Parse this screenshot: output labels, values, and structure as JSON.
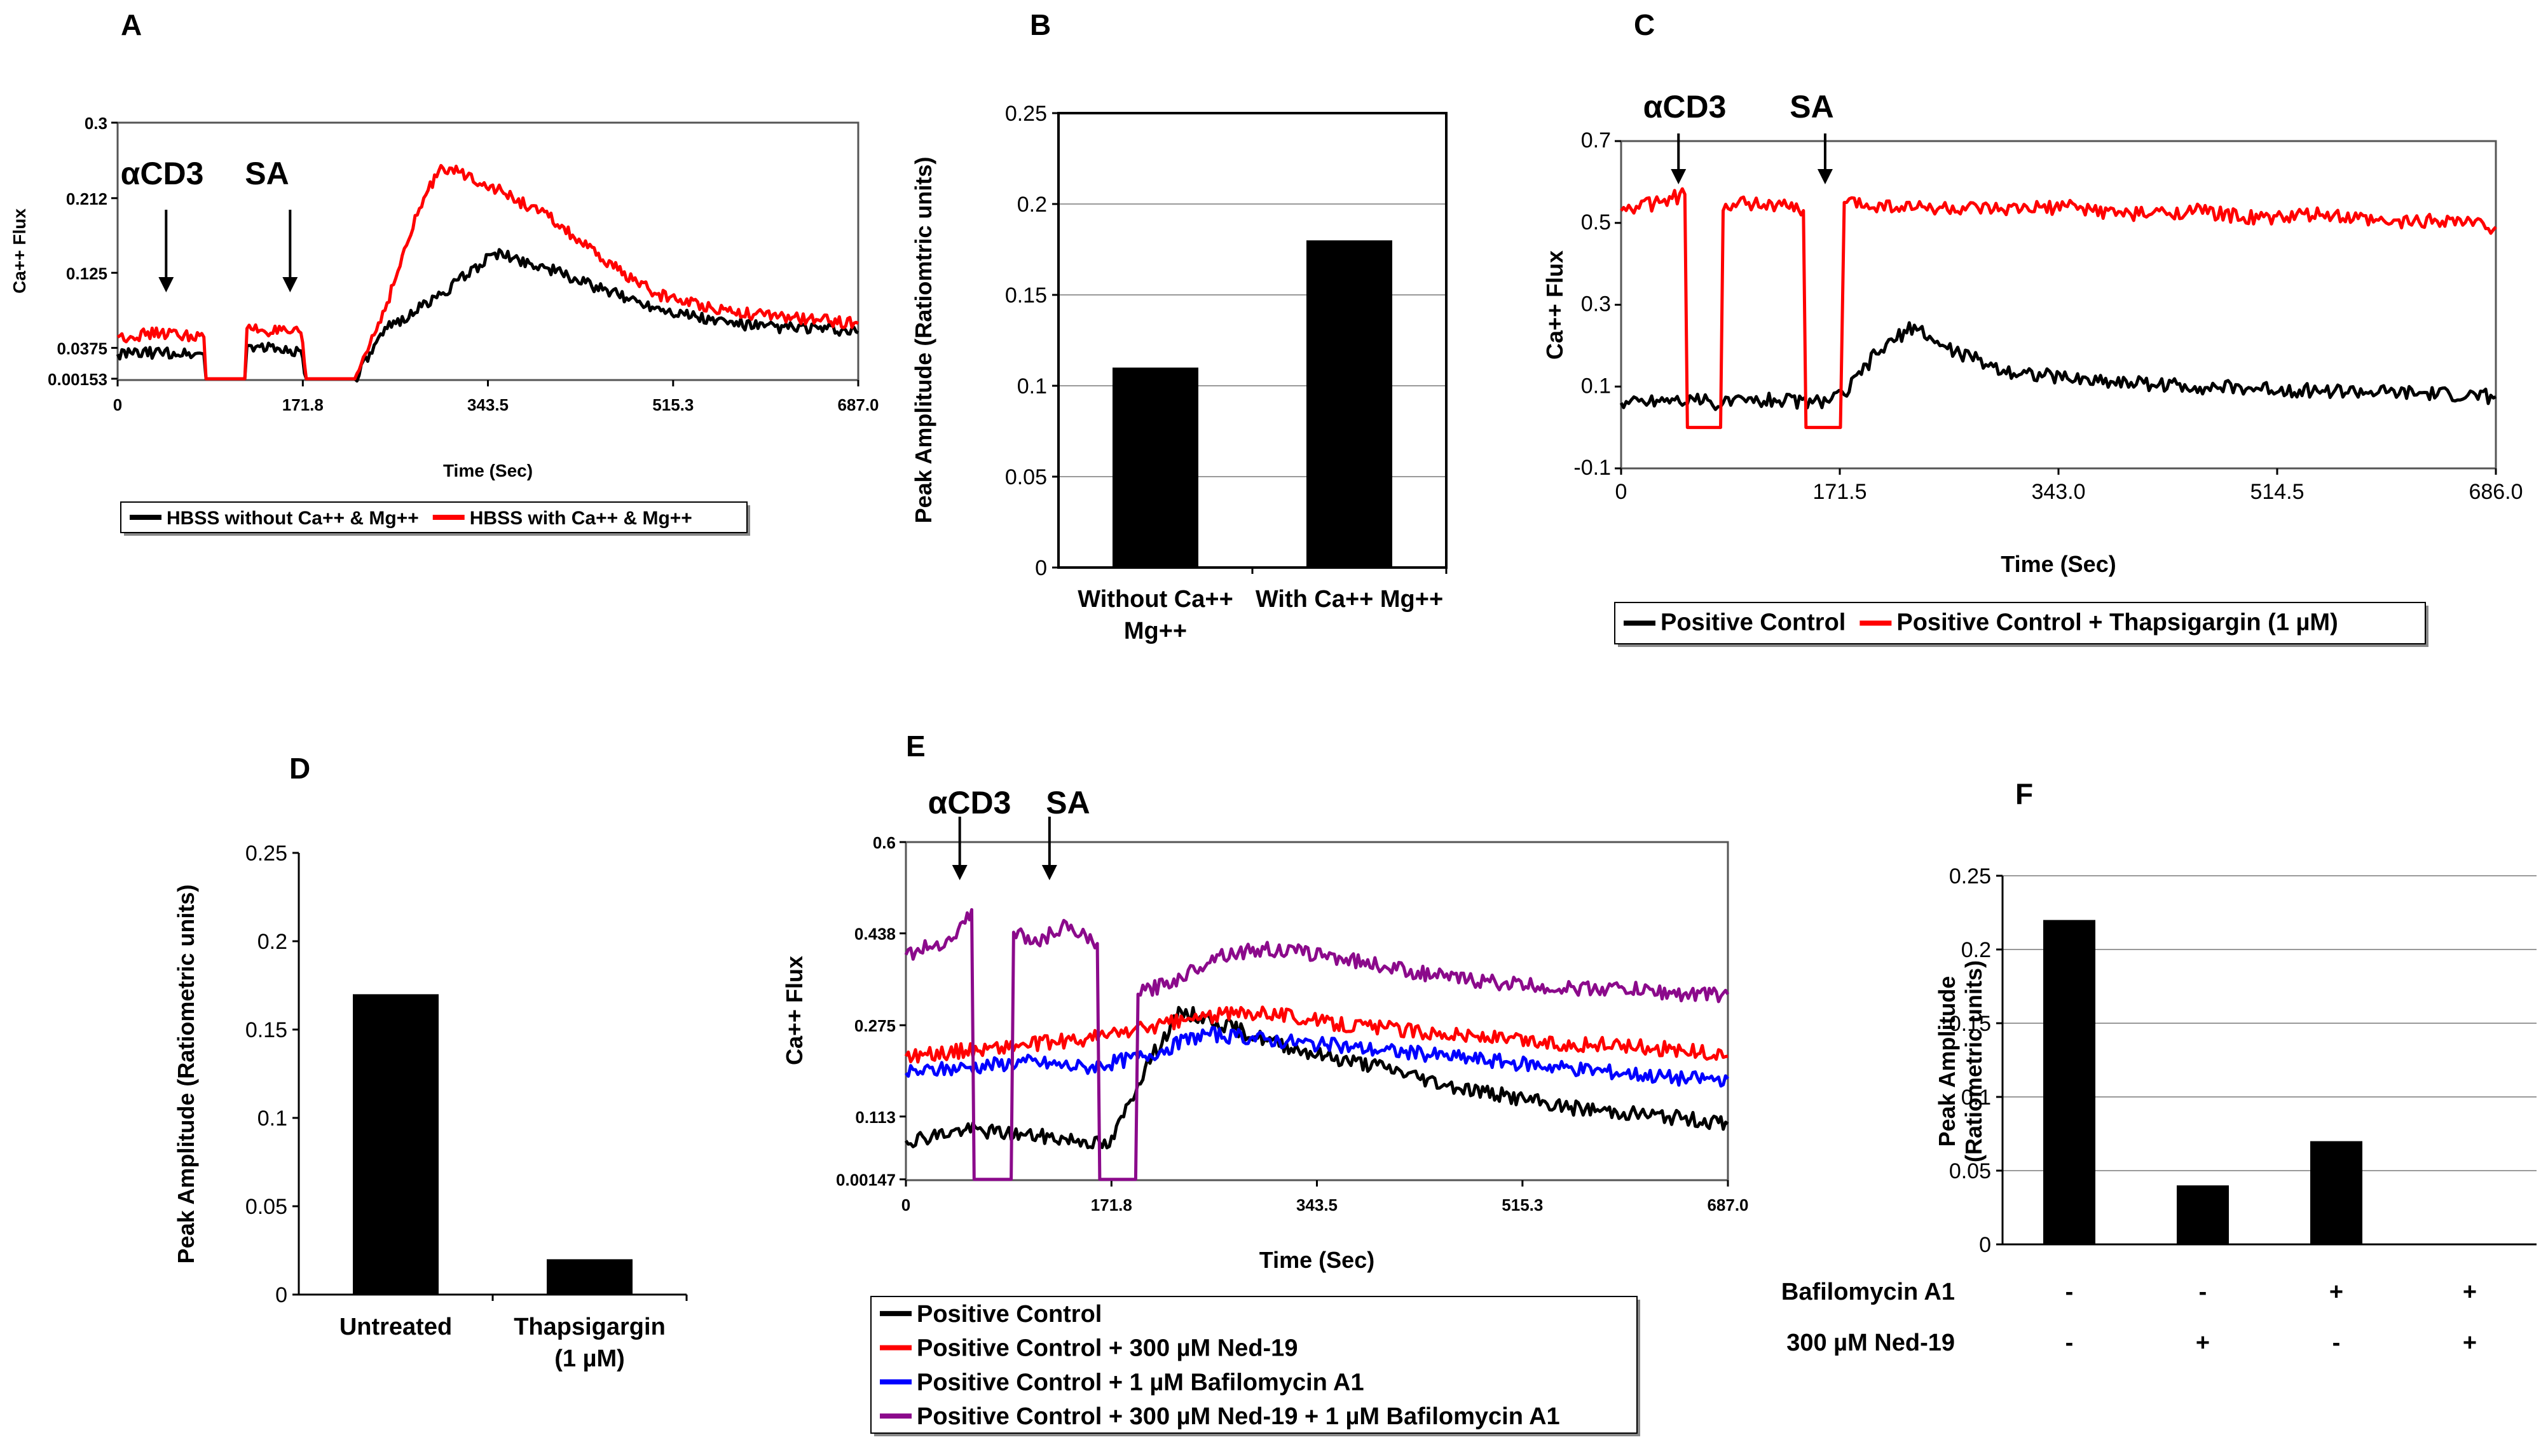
{
  "chart_data": [
    {
      "id": "A",
      "type": "line",
      "panel_label": "A",
      "xlabel": "Time (Sec)",
      "ylabel": "Ca++ Flux",
      "xlim": [
        0,
        687.0
      ],
      "ylim": [
        0,
        0.3
      ],
      "xticks": [
        "0",
        "171.8",
        "343.5",
        "515.3",
        "687.0"
      ],
      "yticks": [
        "0.00153",
        "0.0375",
        "0.125",
        "0.212",
        "0.3"
      ],
      "ytick_values": [
        0.00153,
        0.0375,
        0.125,
        0.212,
        0.3
      ],
      "annotations": [
        {
          "text": "αCD3",
          "x": 45
        },
        {
          "text": "SA",
          "x": 160
        }
      ],
      "legend_placement": "bottom",
      "series": [
        {
          "name": "HBSS without Ca++ & Mg++",
          "color": "#000000",
          "x": [
            0,
            40,
            80,
            82,
            118,
            120,
            160,
            170,
            175,
            220,
            250,
            300,
            350,
            400,
            450,
            500,
            550,
            600,
            650,
            687
          ],
          "y": [
            0.03,
            0.032,
            0.03,
            0.0015,
            0.0015,
            0.04,
            0.035,
            0.034,
            0.0015,
            0.0015,
            0.06,
            0.1,
            0.148,
            0.13,
            0.105,
            0.085,
            0.07,
            0.062,
            0.06,
            0.055
          ]
        },
        {
          "name": "HBSS with Ca++ & Mg++",
          "color": "#ff0000",
          "x": [
            0,
            40,
            80,
            82,
            118,
            120,
            160,
            170,
            175,
            220,
            250,
            280,
            300,
            340,
            400,
            450,
            500,
            550,
            600,
            650,
            687
          ],
          "y": [
            0.05,
            0.055,
            0.05,
            0.0015,
            0.0015,
            0.06,
            0.055,
            0.055,
            0.0015,
            0.0015,
            0.09,
            0.2,
            0.25,
            0.23,
            0.19,
            0.14,
            0.1,
            0.085,
            0.075,
            0.07,
            0.066
          ]
        }
      ]
    },
    {
      "id": "B",
      "type": "bar",
      "panel_label": "B",
      "ylabel": "Peak Amplitude (Ratiomtric units)",
      "ylim": [
        0,
        0.25
      ],
      "yticks": [
        "0",
        "0.05",
        "0.1",
        "0.15",
        "0.2",
        "0.25"
      ],
      "categories": [
        [
          "Without Ca++",
          "Mg++"
        ],
        [
          "With Ca++ Mg++"
        ]
      ],
      "values": [
        0.11,
        0.18
      ],
      "color": "#000000",
      "grid": true
    },
    {
      "id": "C",
      "type": "line",
      "panel_label": "C",
      "xlabel": "Time (Sec)",
      "ylabel": "Ca++ Flux",
      "xlim": [
        0,
        686.0
      ],
      "ylim": [
        -0.1,
        0.7
      ],
      "xticks": [
        "0",
        "171.5",
        "343.0",
        "514.5",
        "686.0"
      ],
      "yticks": [
        "-0.1",
        "0.1",
        "0.3",
        "0.5",
        "0.7"
      ],
      "annotations": [
        {
          "text": "αCD3",
          "x": 45
        },
        {
          "text": "SA",
          "x": 160
        }
      ],
      "legend_placement": "bottom",
      "series": [
        {
          "name": "Positive Control",
          "color": "#000000",
          "x": [
            0,
            40,
            80,
            120,
            150,
            165,
            175,
            200,
            230,
            250,
            300,
            350,
            400,
            450,
            500,
            550,
            600,
            650,
            686
          ],
          "y": [
            0.06,
            0.07,
            0.06,
            0.07,
            0.06,
            0.07,
            0.08,
            0.18,
            0.25,
            0.2,
            0.14,
            0.12,
            0.11,
            0.1,
            0.095,
            0.09,
            0.085,
            0.08,
            0.075
          ]
        },
        {
          "name": "Positive Control + Thapsigargin (1 µM)",
          "color": "#ff0000",
          "x": [
            0,
            30,
            50,
            52,
            78,
            80,
            100,
            130,
            143,
            145,
            172,
            175,
            220,
            300,
            350,
            400,
            450,
            500,
            550,
            600,
            650,
            686
          ],
          "y": [
            0.53,
            0.55,
            0.57,
            0.0,
            0.0,
            0.53,
            0.55,
            0.54,
            0.53,
            0.0,
            0.0,
            0.55,
            0.54,
            0.53,
            0.54,
            0.52,
            0.53,
            0.51,
            0.52,
            0.5,
            0.51,
            0.49
          ]
        }
      ]
    },
    {
      "id": "D",
      "type": "bar",
      "panel_label": "D",
      "ylabel": "Peak Amplitude (Ratiometric units)",
      "ylim": [
        0,
        0.25
      ],
      "yticks": [
        "0",
        "0.05",
        "0.1",
        "0.15",
        "0.2",
        "0.25"
      ],
      "categories": [
        [
          "Untreated"
        ],
        [
          "Thapsigargin",
          "(1 µM)"
        ]
      ],
      "values": [
        0.17,
        0.02
      ],
      "color": "#000000",
      "grid": false
    },
    {
      "id": "E",
      "type": "line",
      "panel_label": "E",
      "xlabel": "Time (Sec)",
      "ylabel": "Ca++ Flux",
      "xlim": [
        0,
        687.0
      ],
      "ylim": [
        0,
        0.6
      ],
      "xticks": [
        "0",
        "171.8",
        "343.5",
        "515.3",
        "687.0"
      ],
      "yticks": [
        "0.00147",
        "0.113",
        "0.275",
        "0.438",
        "0.6"
      ],
      "ytick_values": [
        0.00147,
        0.113,
        0.275,
        0.438,
        0.6
      ],
      "annotations": [
        {
          "text": "αCD3",
          "x": 45
        },
        {
          "text": "SA",
          "x": 120
        }
      ],
      "legend_placement": "bottom",
      "series": [
        {
          "name": "Positive Control",
          "color": "#000000",
          "x": [
            0,
            50,
            100,
            150,
            170,
            200,
            230,
            260,
            300,
            350,
            400,
            450,
            500,
            550,
            600,
            650,
            687
          ],
          "y": [
            0.07,
            0.09,
            0.08,
            0.07,
            0.06,
            0.2,
            0.3,
            0.28,
            0.25,
            0.22,
            0.2,
            0.17,
            0.15,
            0.13,
            0.12,
            0.11,
            0.1
          ]
        },
        {
          "name": "Positive Control + 300 µM Ned-19",
          "color": "#ff0000",
          "x": [
            0,
            50,
            100,
            150,
            200,
            250,
            300,
            350,
            400,
            450,
            500,
            550,
            600,
            650,
            687
          ],
          "y": [
            0.22,
            0.23,
            0.24,
            0.25,
            0.27,
            0.29,
            0.3,
            0.28,
            0.27,
            0.26,
            0.25,
            0.24,
            0.24,
            0.23,
            0.22
          ]
        },
        {
          "name": "Positive Control + 1 µM Bafilomycin A1",
          "color": "#0000ff",
          "x": [
            0,
            50,
            100,
            150,
            200,
            250,
            300,
            350,
            400,
            450,
            500,
            550,
            600,
            650,
            687
          ],
          "y": [
            0.19,
            0.2,
            0.21,
            0.2,
            0.22,
            0.26,
            0.25,
            0.24,
            0.23,
            0.22,
            0.21,
            0.2,
            0.19,
            0.18,
            0.18
          ]
        },
        {
          "name": "Positive Control + 300 µM Ned-19 + 1 µM Bafilomycin A1",
          "color": "#8b0a8b",
          "x": [
            0,
            40,
            55,
            57,
            88,
            90,
            110,
            130,
            160,
            162,
            192,
            194,
            230,
            260,
            300,
            350,
            400,
            450,
            500,
            550,
            600,
            650,
            687
          ],
          "y": [
            0.4,
            0.43,
            0.48,
            0.0015,
            0.0015,
            0.44,
            0.42,
            0.45,
            0.42,
            0.0015,
            0.0015,
            0.33,
            0.36,
            0.4,
            0.41,
            0.4,
            0.38,
            0.36,
            0.35,
            0.34,
            0.34,
            0.33,
            0.33
          ]
        }
      ]
    },
    {
      "id": "F",
      "type": "bar",
      "panel_label": "F",
      "ylabel": [
        "Peak Amplitude",
        "(Ratiometric units)"
      ],
      "ylim": [
        0,
        0.25
      ],
      "yticks": [
        "0",
        "0.05",
        "0.1",
        "0.15",
        "0.2",
        "0.25"
      ],
      "values": [
        0.22,
        0.04,
        0.07,
        0.0
      ],
      "color": "#000000",
      "grid": true,
      "condition_rows": [
        {
          "label": "Bafilomycin A1",
          "marks": [
            "-",
            "-",
            "+",
            "+"
          ]
        },
        {
          "label": "300 µM Ned-19",
          "marks": [
            "-",
            "+",
            "-",
            "+"
          ]
        }
      ]
    }
  ]
}
